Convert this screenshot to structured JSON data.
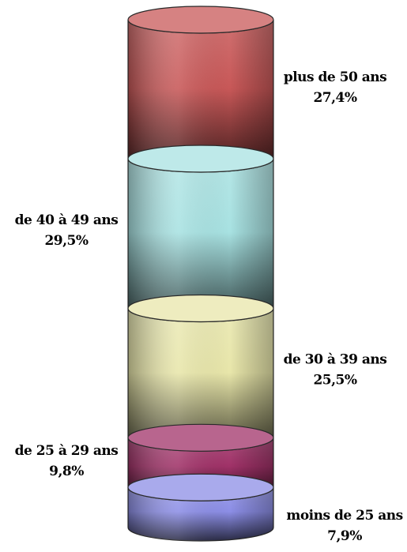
{
  "chart_data": {
    "type": "bar",
    "subtype": "stacked-cylinder",
    "unit": "%",
    "segments": [
      {
        "category": "moins de 25 ans",
        "value": 7.9,
        "label": "7,9%",
        "color": "#8c8ee6",
        "label_side": "right"
      },
      {
        "category": "de 25 à 29 ans",
        "value": 9.8,
        "label": "9,8%",
        "color": "#a03268",
        "label_side": "left"
      },
      {
        "category": "de 30 à 39 ans",
        "value": 25.5,
        "label": "25,5%",
        "color": "#e8e6aa",
        "label_side": "right"
      },
      {
        "category": "de 40 à 49 ans",
        "value": 29.5,
        "label": "29,5%",
        "color": "#a8e2e2",
        "label_side": "left"
      },
      {
        "category": "plus de 50 ans",
        "value": 27.4,
        "label": "27,4%",
        "color": "#c85858",
        "label_side": "right"
      }
    ]
  }
}
